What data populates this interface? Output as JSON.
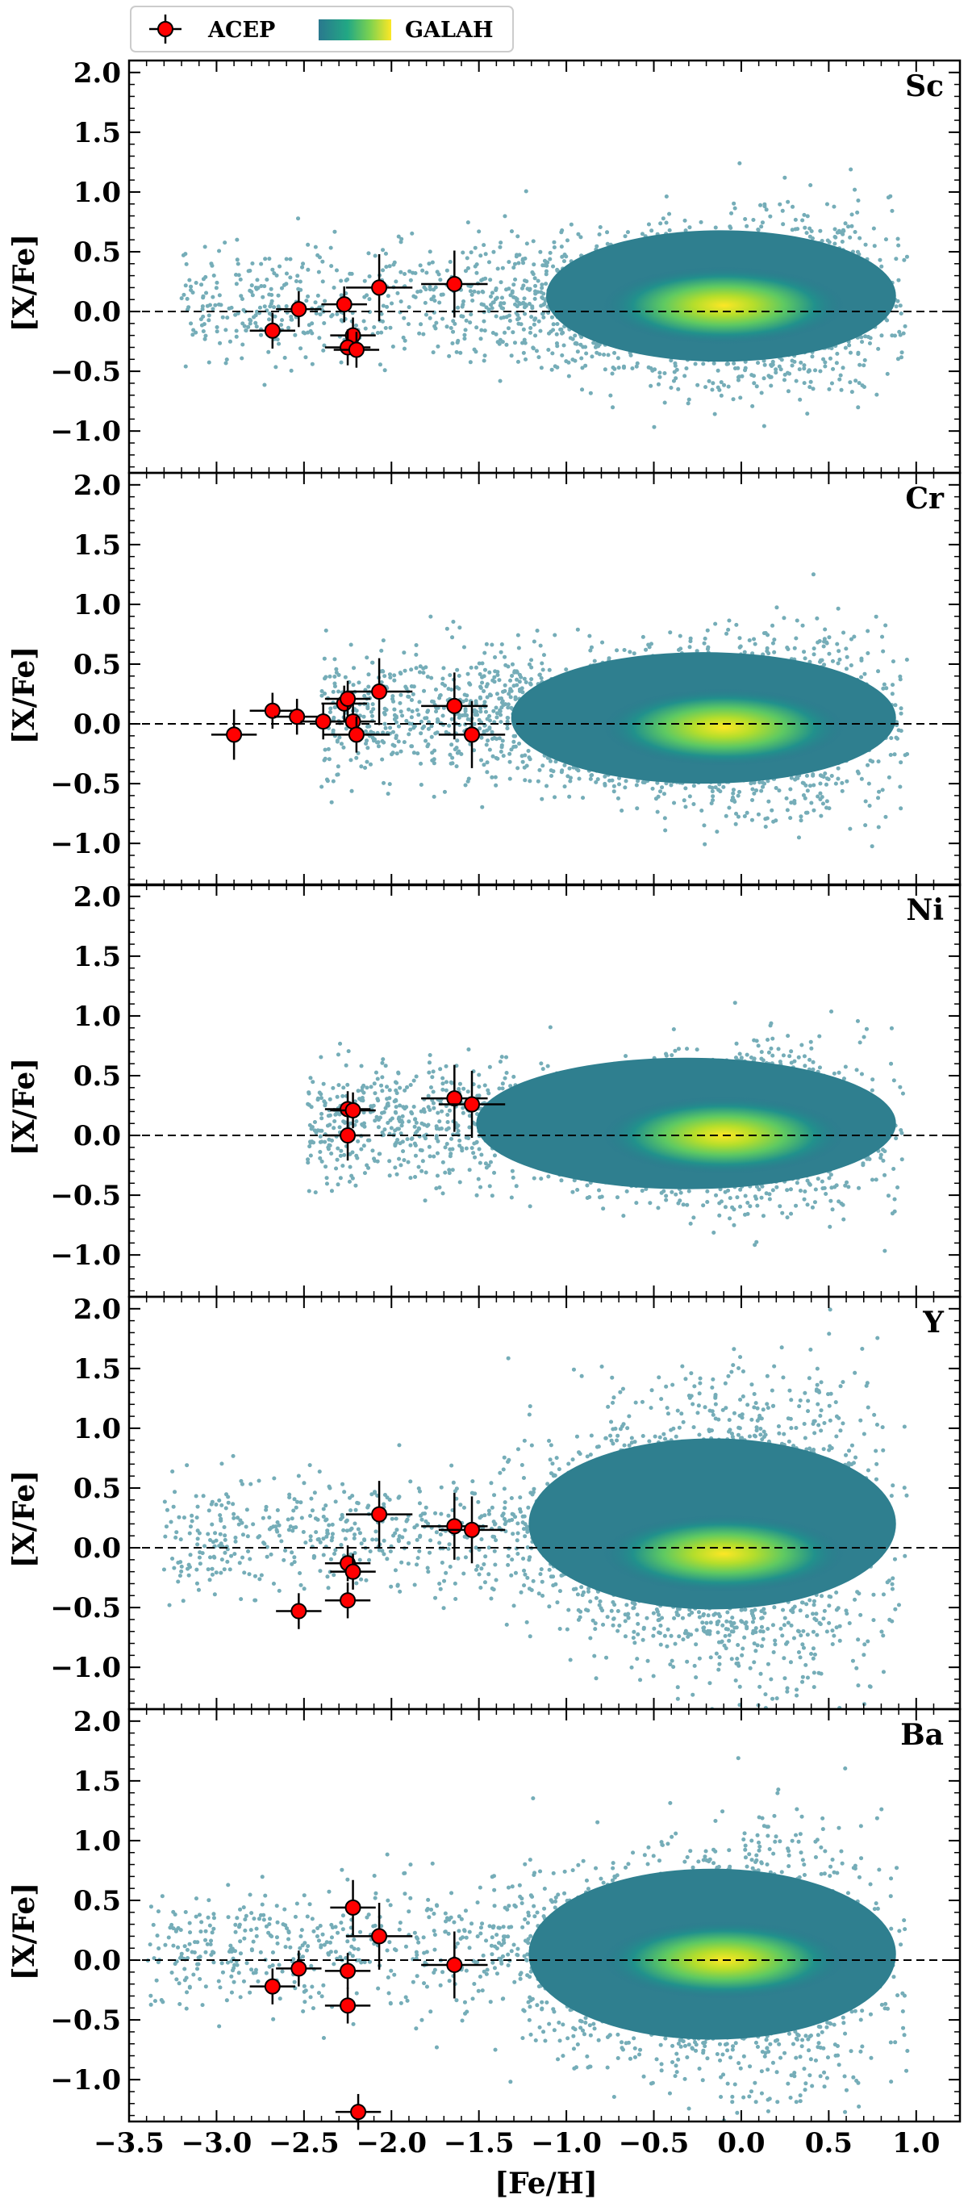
{
  "chart_data": {
    "type": "scatter",
    "xlabel": "[Fe/H]",
    "ylabel": "[X/Fe]",
    "xlim": [
      -3.5,
      1.25
    ],
    "x_ticks": [
      "−3.5",
      "−3.0",
      "−2.5",
      "−2.0",
      "−1.5",
      "−1.0",
      "−0.5",
      "0.0",
      "0.5",
      "1.0"
    ],
    "y_ticks": [
      "−1.0",
      "−0.5",
      "0.0",
      "0.5",
      "1.0",
      "1.5",
      "2.0"
    ],
    "reference_line_y": 0.0,
    "legend": {
      "location": "top-left, above panels",
      "entries": [
        {
          "label": "ACEP",
          "kind": "errorbar marker",
          "color": "#ff0000"
        },
        {
          "label": "GALAH",
          "kind": "density colormap",
          "colors": [
            "#2a788e",
            "#22a884",
            "#7ad151",
            "#fde725"
          ]
        }
      ]
    },
    "panels": [
      {
        "element": "Sc",
        "ylim": [
          -1.35,
          2.1
        ],
        "galah_density": {
          "peak": [
            -0.1,
            0.05
          ],
          "core_range_feh": [
            -1.3,
            0.7
          ],
          "tail_to_feh": -3.2
        },
        "acep": [
          {
            "feh": -2.68,
            "xfe": -0.16,
            "xerr": 0.13,
            "yerr": 0.15
          },
          {
            "feh": -2.53,
            "xfe": 0.02,
            "xerr": 0.13,
            "yerr": 0.15
          },
          {
            "feh": -2.27,
            "xfe": 0.06,
            "xerr": 0.13,
            "yerr": 0.15
          },
          {
            "feh": -2.22,
            "xfe": -0.2,
            "xerr": 0.13,
            "yerr": 0.15
          },
          {
            "feh": -2.25,
            "xfe": -0.3,
            "xerr": 0.13,
            "yerr": 0.15
          },
          {
            "feh": -2.2,
            "xfe": -0.32,
            "xerr": 0.13,
            "yerr": 0.15
          },
          {
            "feh": -2.07,
            "xfe": 0.2,
            "xerr": 0.19,
            "yerr": 0.28
          },
          {
            "feh": -1.64,
            "xfe": 0.23,
            "xerr": 0.19,
            "yerr": 0.28
          }
        ]
      },
      {
        "element": "Cr",
        "ylim": [
          -1.35,
          2.1
        ],
        "galah_density": {
          "peak": [
            -0.1,
            -0.03
          ],
          "core_range_feh": [
            -1.5,
            0.7
          ],
          "tail_to_feh": -2.4
        },
        "acep": [
          {
            "feh": -2.9,
            "xfe": -0.09,
            "xerr": 0.13,
            "yerr": 0.21
          },
          {
            "feh": -2.68,
            "xfe": 0.11,
            "xerr": 0.13,
            "yerr": 0.15
          },
          {
            "feh": -2.54,
            "xfe": 0.06,
            "xerr": 0.13,
            "yerr": 0.15
          },
          {
            "feh": -2.39,
            "xfe": 0.02,
            "xerr": 0.13,
            "yerr": 0.15
          },
          {
            "feh": -2.27,
            "xfe": 0.17,
            "xerr": 0.13,
            "yerr": 0.15
          },
          {
            "feh": -2.25,
            "xfe": 0.21,
            "xerr": 0.13,
            "yerr": 0.15
          },
          {
            "feh": -2.22,
            "xfe": 0.02,
            "xerr": 0.13,
            "yerr": 0.15
          },
          {
            "feh": -2.2,
            "xfe": -0.09,
            "xerr": 0.19,
            "yerr": 0.15
          },
          {
            "feh": -2.07,
            "xfe": 0.27,
            "xerr": 0.19,
            "yerr": 0.28
          },
          {
            "feh": -1.64,
            "xfe": 0.15,
            "xerr": 0.19,
            "yerr": 0.28
          },
          {
            "feh": -1.54,
            "xfe": -0.09,
            "xerr": 0.19,
            "yerr": 0.28
          }
        ]
      },
      {
        "element": "Ni",
        "ylim": [
          -1.35,
          2.1
        ],
        "galah_density": {
          "peak": [
            -0.1,
            0.0
          ],
          "core_range_feh": [
            -1.7,
            0.7
          ],
          "tail_to_feh": -2.5
        },
        "acep": [
          {
            "feh": -2.25,
            "xfe": 0.0,
            "xerr": 0.13,
            "yerr": 0.21
          },
          {
            "feh": -2.25,
            "xfe": 0.22,
            "xerr": 0.13,
            "yerr": 0.15
          },
          {
            "feh": -2.22,
            "xfe": 0.21,
            "xerr": 0.13,
            "yerr": 0.15
          },
          {
            "feh": -1.64,
            "xfe": 0.31,
            "xerr": 0.19,
            "yerr": 0.28
          },
          {
            "feh": -1.54,
            "xfe": 0.26,
            "xerr": 0.19,
            "yerr": 0.28
          }
        ]
      },
      {
        "element": "Y",
        "ylim": [
          -1.35,
          2.1
        ],
        "galah_density": {
          "peak": [
            -0.1,
            -0.05
          ],
          "core_range_feh": [
            -1.4,
            0.7
          ],
          "tail_to_feh": -3.3
        },
        "acep": [
          {
            "feh": -2.53,
            "xfe": -0.53,
            "xerr": 0.13,
            "yerr": 0.15
          },
          {
            "feh": -2.25,
            "xfe": -0.44,
            "xerr": 0.13,
            "yerr": 0.15
          },
          {
            "feh": -2.25,
            "xfe": -0.13,
            "xerr": 0.13,
            "yerr": 0.15
          },
          {
            "feh": -2.22,
            "xfe": -0.2,
            "xerr": 0.13,
            "yerr": 0.15
          },
          {
            "feh": -2.07,
            "xfe": 0.28,
            "xerr": 0.19,
            "yerr": 0.28
          },
          {
            "feh": -1.64,
            "xfe": 0.18,
            "xerr": 0.19,
            "yerr": 0.28
          },
          {
            "feh": -1.54,
            "xfe": 0.15,
            "xerr": 0.19,
            "yerr": 0.28
          }
        ]
      },
      {
        "element": "Ba",
        "ylim": [
          -1.35,
          2.1
        ],
        "galah_density": {
          "peak": [
            -0.1,
            0.0
          ],
          "core_range_feh": [
            -1.4,
            0.7
          ],
          "tail_to_feh": -3.4
        },
        "acep": [
          {
            "feh": -2.68,
            "xfe": -0.22,
            "xerr": 0.13,
            "yerr": 0.15
          },
          {
            "feh": -2.53,
            "xfe": -0.07,
            "xerr": 0.13,
            "yerr": 0.15
          },
          {
            "feh": -2.25,
            "xfe": -0.09,
            "xerr": 0.13,
            "yerr": 0.15
          },
          {
            "feh": -2.25,
            "xfe": -0.38,
            "xerr": 0.13,
            "yerr": 0.15
          },
          {
            "feh": -2.22,
            "xfe": 0.44,
            "xerr": 0.13,
            "yerr": 0.23
          },
          {
            "feh": -2.07,
            "xfe": 0.2,
            "xerr": 0.19,
            "yerr": 0.28
          },
          {
            "feh": -1.64,
            "xfe": -0.04,
            "xerr": 0.19,
            "yerr": 0.28
          },
          {
            "feh": -2.19,
            "xfe": -1.27,
            "xerr": 0.13,
            "yerr": 0.15
          }
        ]
      }
    ]
  }
}
